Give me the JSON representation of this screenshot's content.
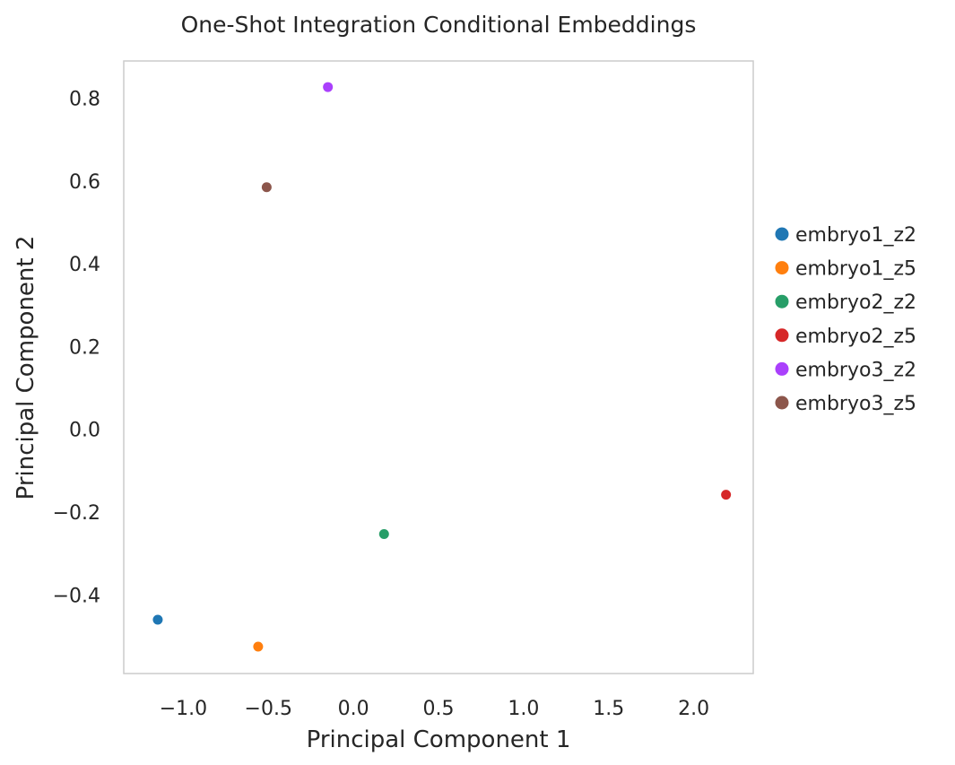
{
  "chart_data": {
    "type": "scatter",
    "title": "One-Shot Integration Conditional Embeddings",
    "xlabel": "Principal Component 1",
    "ylabel": "Principal Component 2",
    "xlim": [
      -1.35,
      2.35
    ],
    "ylim": [
      -0.59,
      0.89
    ],
    "xticks": [
      -1.0,
      -0.5,
      0.0,
      0.5,
      1.0,
      1.5,
      2.0
    ],
    "xtick_labels": [
      "−1.0",
      "−0.5",
      "0.0",
      "0.5",
      "1.0",
      "1.5",
      "2.0"
    ],
    "yticks": [
      -0.4,
      -0.2,
      0.0,
      0.2,
      0.4,
      0.6,
      0.8
    ],
    "ytick_labels": [
      "−0.4",
      "−0.2",
      "0.0",
      "0.2",
      "0.4",
      "0.6",
      "0.8"
    ],
    "grid": false,
    "legend_position": "right",
    "series": [
      {
        "name": "embryo1_z2",
        "color": "#1f77b4",
        "x": -1.15,
        "y": -0.46
      },
      {
        "name": "embryo1_z5",
        "color": "#ff7f0e",
        "x": -0.56,
        "y": -0.525
      },
      {
        "name": "embryo2_z2",
        "color": "#279e68",
        "x": 0.18,
        "y": -0.253
      },
      {
        "name": "embryo2_z5",
        "color": "#d62728",
        "x": 2.19,
        "y": -0.158
      },
      {
        "name": "embryo3_z2",
        "color": "#aa40fc",
        "x": -0.15,
        "y": 0.827
      },
      {
        "name": "embryo3_z5",
        "color": "#8c564b",
        "x": -0.51,
        "y": 0.585
      }
    ]
  }
}
